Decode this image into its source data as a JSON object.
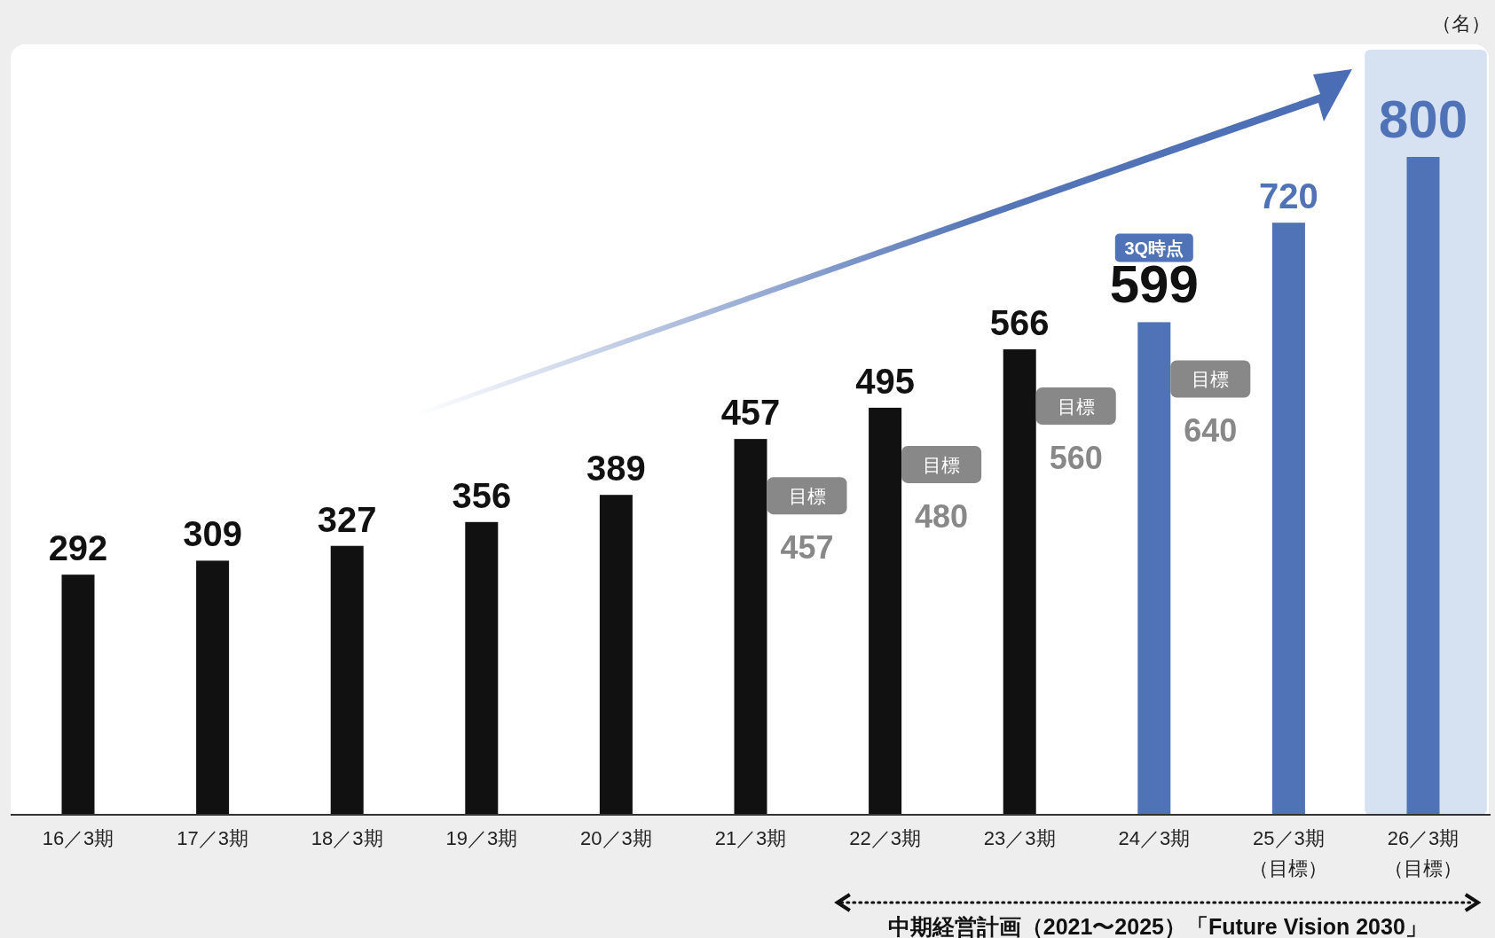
{
  "chart_data": {
    "type": "bar",
    "categories": [
      "16／3期",
      "17／3期",
      "18／3期",
      "19／3期",
      "20／3期",
      "21／3期",
      "22／3期",
      "23／3期",
      "24／3期",
      "25／3期（目標）",
      "26／3期（目標）"
    ],
    "values": [
      292,
      309,
      327,
      356,
      389,
      457,
      495,
      566,
      599,
      720,
      800
    ],
    "colors": [
      "#111111",
      "#111111",
      "#111111",
      "#111111",
      "#111111",
      "#111111",
      "#111111",
      "#111111",
      "#4f73b6",
      "#4f73b6",
      "#4f73b6"
    ],
    "data_labels": true,
    "bands": [
      {
        "axis": "x",
        "from": "26／3期（目標）",
        "to": "26／3期（目標）",
        "color": "#d6e2f1"
      }
    ],
    "annotations": [
      "（名）",
      "目標",
      "457",
      "目標",
      "480",
      "目標",
      "560",
      "目標",
      "640",
      "3Q時点",
      "中期経営計画（2021〜2025）「Future Vision 2030」"
    ]
  }
}
